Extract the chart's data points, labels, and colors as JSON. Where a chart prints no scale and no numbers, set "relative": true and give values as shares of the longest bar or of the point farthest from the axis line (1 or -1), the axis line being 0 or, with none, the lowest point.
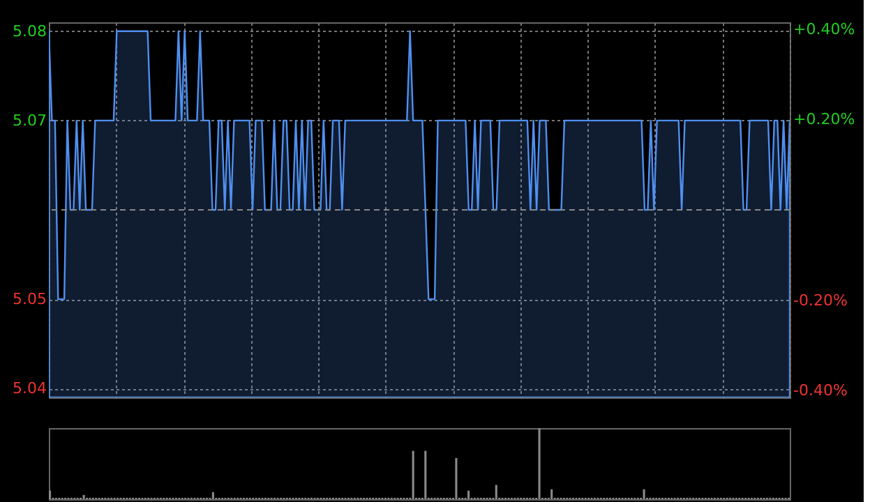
{
  "chart_data": [
    {
      "type": "area",
      "color": "#4f8ff0",
      "categories": [
        null,
        null,
        null,
        null,
        null,
        null,
        null,
        null,
        null,
        null,
        null,
        null,
        null,
        null,
        null,
        null,
        null,
        null,
        null,
        null,
        null,
        null,
        null,
        null,
        null,
        null,
        null,
        null,
        null,
        null,
        null,
        null,
        null,
        null,
        null,
        null,
        null,
        null,
        null,
        null,
        null,
        null,
        null,
        null,
        null,
        null,
        null,
        null,
        null,
        null,
        null,
        null,
        null,
        null,
        null,
        null,
        null,
        null,
        null,
        null,
        null,
        null,
        null,
        null,
        null,
        null,
        null,
        null,
        null,
        null,
        null,
        null,
        null,
        null,
        null,
        null,
        null,
        null,
        null,
        null,
        null,
        null,
        null,
        null,
        null,
        null,
        null,
        null,
        null,
        null,
        null,
        null,
        null,
        null,
        null,
        null,
        null,
        null,
        null,
        null,
        null,
        null,
        null,
        null,
        null,
        null,
        null,
        null,
        null,
        null,
        null,
        null,
        null,
        null,
        null,
        null,
        null,
        null,
        null,
        null,
        null,
        null,
        null,
        null,
        null,
        null,
        null,
        null,
        null,
        null,
        null,
        null,
        null,
        null,
        null,
        null,
        null,
        null,
        null,
        null,
        null,
        null,
        null,
        null,
        null,
        null,
        null,
        null,
        null,
        null,
        null,
        null,
        null,
        null,
        null,
        null,
        null,
        null,
        null,
        null,
        null,
        null,
        null,
        null,
        null,
        null,
        null,
        null,
        null,
        null,
        null,
        null,
        null,
        null,
        null,
        null,
        null,
        null,
        null,
        null,
        null,
        null,
        null,
        null,
        null,
        null,
        null,
        null,
        null,
        null,
        null,
        null,
        null,
        null,
        null,
        null,
        null,
        null,
        null,
        null,
        null,
        null,
        null,
        null,
        null,
        null,
        null,
        null,
        null,
        null,
        null,
        null,
        null,
        null,
        null,
        null,
        null,
        null,
        null,
        null,
        null,
        null,
        null,
        null,
        null,
        null,
        null,
        null,
        null,
        null,
        null,
        null,
        null,
        null,
        null,
        null,
        null,
        null,
        null,
        null,
        null
      ],
      "values": [
        5.08,
        5.07,
        5.07,
        5.05,
        5.05,
        5.05,
        5.07,
        5.06,
        5.06,
        5.07,
        5.06,
        5.07,
        5.06,
        5.06,
        5.06,
        5.07,
        5.07,
        5.07,
        5.07,
        5.07,
        5.07,
        5.07,
        5.08,
        5.08,
        5.08,
        5.08,
        5.08,
        5.08,
        5.08,
        5.08,
        5.08,
        5.08,
        5.08,
        5.07,
        5.07,
        5.07,
        5.07,
        5.07,
        5.07,
        5.07,
        5.07,
        5.07,
        5.08,
        5.07,
        5.08,
        5.07,
        5.07,
        5.07,
        5.07,
        5.08,
        5.07,
        5.07,
        5.07,
        5.06,
        5.06,
        5.07,
        5.07,
        5.06,
        5.07,
        5.06,
        5.07,
        5.07,
        5.07,
        5.07,
        5.07,
        5.07,
        5.06,
        5.07,
        5.07,
        5.07,
        5.06,
        5.06,
        5.06,
        5.07,
        5.06,
        5.06,
        5.07,
        5.07,
        5.06,
        5.06,
        5.07,
        5.06,
        5.07,
        5.06,
        5.07,
        5.07,
        5.06,
        5.06,
        5.06,
        5.07,
        5.06,
        5.06,
        5.07,
        5.07,
        5.07,
        5.06,
        5.07,
        5.07,
        5.07,
        5.07,
        5.07,
        5.07,
        5.07,
        5.07,
        5.07,
        5.07,
        5.07,
        5.07,
        5.07,
        5.07,
        5.07,
        5.07,
        5.07,
        5.07,
        5.07,
        5.07,
        5.07,
        5.08,
        5.07,
        5.07,
        5.07,
        5.07,
        5.06,
        5.05,
        5.05,
        5.05,
        5.07,
        5.07,
        5.07,
        5.07,
        5.07,
        5.07,
        5.07,
        5.07,
        5.07,
        5.07,
        5.06,
        5.06,
        5.07,
        5.06,
        5.07,
        5.07,
        5.07,
        5.07,
        5.06,
        5.06,
        5.07,
        5.07,
        5.07,
        5.07,
        5.07,
        5.07,
        5.07,
        5.07,
        5.07,
        5.07,
        5.06,
        5.07,
        5.06,
        5.07,
        5.07,
        5.07,
        5.06,
        5.06,
        5.06,
        5.06,
        5.06,
        5.07,
        5.07,
        5.07,
        5.07,
        5.07,
        5.07,
        5.07,
        5.07,
        5.07,
        5.07,
        5.07,
        5.07,
        5.07,
        5.07,
        5.07,
        5.07,
        5.07,
        5.07,
        5.07,
        5.07,
        5.07,
        5.07,
        5.07,
        5.07,
        5.07,
        5.07,
        5.06,
        5.06,
        5.07,
        5.06,
        5.07,
        5.07,
        5.07,
        5.07,
        5.07,
        5.07,
        5.07,
        5.07,
        5.06,
        5.07,
        5.07,
        5.07,
        5.07,
        5.07,
        5.07,
        5.07,
        5.07,
        5.07,
        5.07,
        5.07,
        5.07,
        5.07,
        5.07,
        5.07,
        5.07,
        5.07,
        5.07,
        5.07,
        5.06,
        5.06,
        5.07,
        5.07,
        5.07,
        5.07,
        5.07,
        5.07,
        5.07,
        5.06,
        5.07,
        5.07,
        5.06,
        5.07,
        5.06,
        5.07
      ],
      "ylim": [
        5.039,
        5.081
      ],
      "yticks": [
        5.04,
        5.05,
        5.07,
        5.08
      ],
      "y2lim": [
        -0.415,
        0.415
      ],
      "y2ticks": [
        {
          "value": -0.4,
          "label": "-0.40%"
        },
        {
          "value": -0.2,
          "label": "-0.20%"
        },
        {
          "value": 0.2,
          "label": "+0.20%"
        },
        {
          "value": 0.4,
          "label": "+0.40%"
        }
      ],
      "ref_lines": [
        {
          "axis": "y",
          "value": 5.06,
          "color": "#888888",
          "line_style": "dashed"
        }
      ],
      "grid": true
    },
    {
      "type": "bar",
      "relative": true,
      "color": "#8a8a8a",
      "categories": [
        null,
        null,
        null,
        null,
        null,
        null,
        null,
        null,
        null,
        null,
        null,
        null,
        null,
        null,
        null,
        null,
        null,
        null,
        null,
        null,
        null,
        null,
        null,
        null,
        null,
        null,
        null,
        null,
        null,
        null,
        null,
        null,
        null,
        null,
        null,
        null,
        null,
        null,
        null,
        null,
        null,
        null,
        null,
        null,
        null,
        null,
        null,
        null,
        null,
        null,
        null,
        null,
        null,
        null,
        null,
        null,
        null,
        null,
        null,
        null,
        null,
        null,
        null,
        null,
        null,
        null,
        null,
        null,
        null,
        null,
        null,
        null,
        null,
        null,
        null,
        null,
        null,
        null,
        null,
        null,
        null,
        null,
        null,
        null,
        null,
        null,
        null,
        null,
        null,
        null,
        null,
        null,
        null,
        null,
        null,
        null,
        null,
        null,
        null,
        null,
        null,
        null,
        null,
        null,
        null,
        null,
        null,
        null,
        null,
        null,
        null,
        null,
        null,
        null,
        null,
        null,
        null,
        null,
        null,
        null,
        null,
        null,
        null,
        null,
        null,
        null,
        null,
        null,
        null,
        null,
        null,
        null,
        null,
        null,
        null,
        null,
        null,
        null,
        null,
        null,
        null,
        null,
        null,
        null,
        null,
        null,
        null,
        null,
        null,
        null,
        null,
        null,
        null,
        null,
        null,
        null,
        null,
        null,
        null,
        null,
        null,
        null,
        null,
        null,
        null,
        null,
        null,
        null,
        null,
        null,
        null,
        null,
        null,
        null,
        null,
        null,
        null,
        null,
        null,
        null,
        null,
        null,
        null,
        null,
        null,
        null,
        null,
        null,
        null,
        null,
        null,
        null,
        null,
        null,
        null,
        null,
        null,
        null,
        null,
        null,
        null,
        null,
        null,
        null,
        null,
        null,
        null,
        null,
        null,
        null,
        null,
        null,
        null,
        null,
        null,
        null,
        null,
        null,
        null,
        null,
        null,
        null,
        null,
        null,
        null,
        null,
        null,
        null,
        null,
        null,
        null,
        null,
        null,
        null,
        null,
        null,
        null,
        null,
        null,
        null,
        null
      ],
      "values": [
        0.12,
        0.02,
        0.02,
        0.02,
        0.02,
        0.02,
        0.02,
        0.02,
        0.02,
        0.02,
        0.02,
        0.06,
        0.02,
        0.02,
        0.02,
        0.02,
        0.02,
        0.02,
        0.02,
        0.02,
        0.02,
        0.02,
        0.02,
        0.02,
        0.02,
        0.02,
        0.02,
        0.02,
        0.02,
        0.02,
        0.02,
        0.02,
        0.02,
        0.02,
        0.02,
        0.02,
        0.02,
        0.02,
        0.02,
        0.02,
        0.02,
        0.02,
        0.02,
        0.02,
        0.02,
        0.02,
        0.02,
        0.02,
        0.02,
        0.02,
        0.02,
        0.02,
        0.02,
        0.1,
        0.02,
        0.02,
        0.02,
        0.02,
        0.02,
        0.02,
        0.02,
        0.02,
        0.02,
        0.02,
        0.02,
        0.02,
        0.02,
        0.02,
        0.02,
        0.02,
        0.02,
        0.02,
        0.02,
        0.02,
        0.02,
        0.02,
        0.02,
        0.02,
        0.02,
        0.02,
        0.02,
        0.02,
        0.02,
        0.02,
        0.02,
        0.02,
        0.02,
        0.02,
        0.02,
        0.02,
        0.02,
        0.02,
        0.02,
        0.02,
        0.02,
        0.02,
        0.02,
        0.02,
        0.02,
        0.02,
        0.02,
        0.02,
        0.02,
        0.02,
        0.02,
        0.02,
        0.02,
        0.02,
        0.02,
        0.02,
        0.02,
        0.02,
        0.02,
        0.02,
        0.02,
        0.02,
        0.02,
        0.02,
        0.68,
        0.02,
        0.02,
        0.02,
        0.68,
        0.02,
        0.02,
        0.02,
        0.02,
        0.02,
        0.02,
        0.02,
        0.02,
        0.02,
        0.58,
        0.02,
        0.02,
        0.02,
        0.12,
        0.02,
        0.02,
        0.02,
        0.02,
        0.02,
        0.02,
        0.02,
        0.02,
        0.2,
        0.02,
        0.02,
        0.02,
        0.02,
        0.02,
        0.02,
        0.02,
        0.02,
        0.02,
        0.02,
        0.02,
        0.02,
        0.02,
        1,
        0.02,
        0.02,
        0.02,
        0.14,
        0.02,
        0.02,
        0.02,
        0.02,
        0.02,
        0.02,
        0.02,
        0.02,
        0.02,
        0.02,
        0.02,
        0.02,
        0.02,
        0.02,
        0.02,
        0.02,
        0.02,
        0.02,
        0.02,
        0.02,
        0.02,
        0.02,
        0.02,
        0.02,
        0.02,
        0.02,
        0.02,
        0.02,
        0.02,
        0.14,
        0.02,
        0.02,
        0.02,
        0.02,
        0.02,
        0.02,
        0.02,
        0.02,
        0.02,
        0.02,
        0.02,
        0.02,
        0.02,
        0.02,
        0.02,
        0.02,
        0.02,
        0.02,
        0.02,
        0.02,
        0.02,
        0.02,
        0.02,
        0.02,
        0.02,
        0.02,
        0.02,
        0.02,
        0.02,
        0.02,
        0.02,
        0.02,
        0.02,
        0.02,
        0.02,
        0.02,
        0.02,
        0.02,
        0.02,
        0.02,
        0.02,
        0.02,
        0.02,
        0.02,
        0.02,
        0.02,
        0.02
      ]
    }
  ]
}
